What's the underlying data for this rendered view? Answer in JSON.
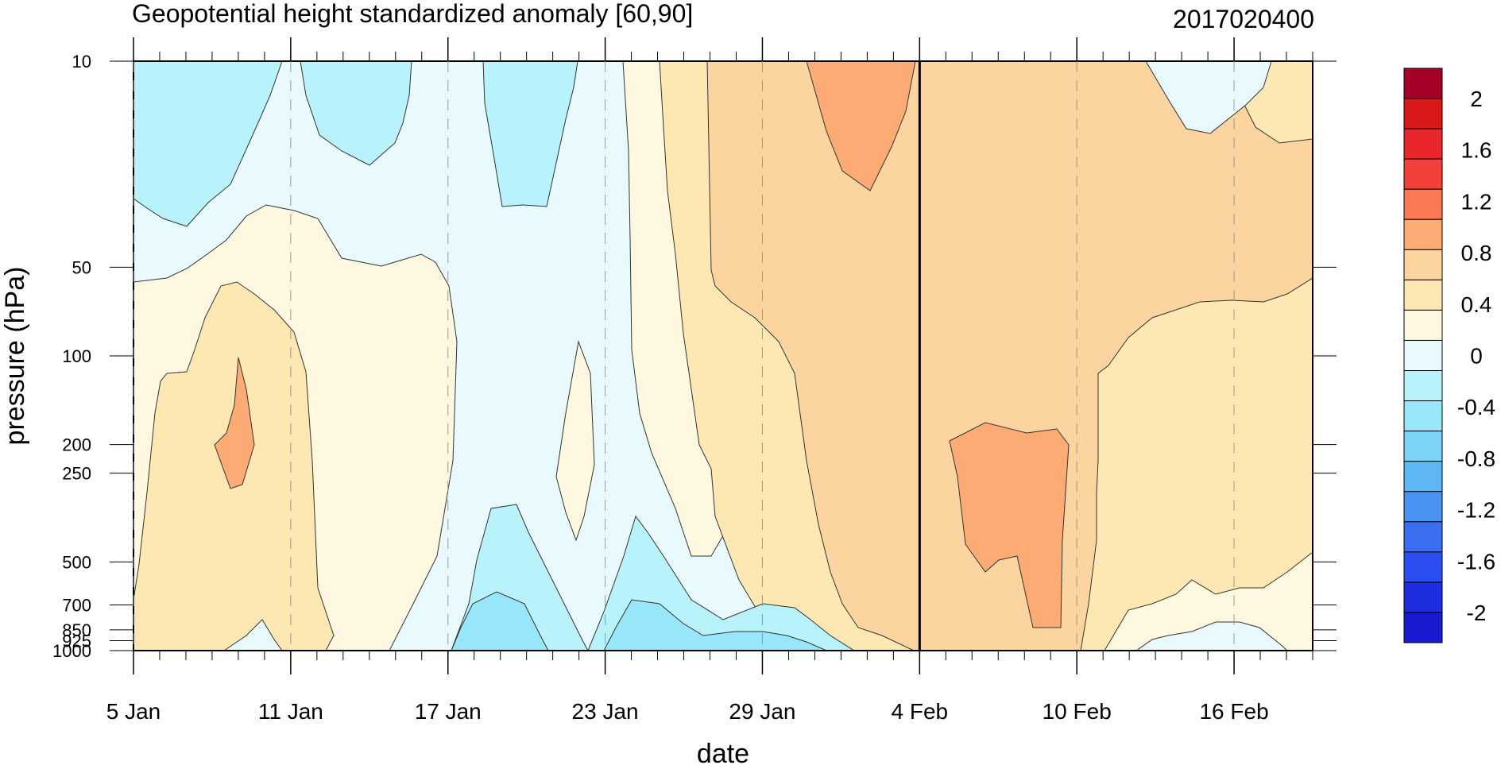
{
  "chart_data": {
    "type": "heatmap",
    "subtype": "filled-contour time-pressure section",
    "title": "Geopotential height standardized anomaly [60,90]",
    "date_stamp": "2017020400",
    "xlabel": "date",
    "ylabel": "pressure (hPa)",
    "y_scale": "log",
    "y_reversed": true,
    "ylim": [
      1000,
      10
    ],
    "xlim": [
      "2017-01-05",
      "2017-02-19"
    ],
    "x_ticks": [
      "5 Jan",
      "11 Jan",
      "17 Jan",
      "23 Jan",
      "29 Jan",
      "4 Feb",
      "10 Feb",
      "16 Feb"
    ],
    "y_ticks": [
      "10",
      "50",
      "100",
      "200",
      "250",
      "500",
      "700",
      "850",
      "925",
      "1000"
    ],
    "vertical_marker": "4 Feb",
    "colorbar": {
      "labels": [
        "2",
        "1.6",
        "1.2",
        "0.8",
        "0.4",
        "0",
        "-0.4",
        "-0.8",
        "-1.2",
        "-1.6",
        "-2"
      ],
      "colors": [
        "#a50026",
        "#d7191c",
        "#e8262b",
        "#f4403a",
        "#fb7a55",
        "#fcab74",
        "#fcd4a0",
        "#fde8b4",
        "#fef8e0",
        "#e8fafd",
        "#b8f2fb",
        "#98e6f9",
        "#7cd4f6",
        "#5fb7f3",
        "#4b93f0",
        "#3b6ef0",
        "#2c4ef0",
        "#1d2ee0",
        "#1a1bd0"
      ]
    },
    "grid": "vertical dashed lines at date ticks",
    "fields": [
      {
        "level": "upper stratosphere 10-50 hPa",
        "period": "5-23 Jan",
        "anomaly_range": [
          -0.8,
          0
        ]
      },
      {
        "level": "upper stratosphere 10-50 hPa",
        "period": "25 Jan-4 Feb",
        "anomaly_range": [
          0.4,
          1.2
        ]
      },
      {
        "level": "lower stratosphere 100-250 hPa",
        "period": "5-12 Jan",
        "anomaly_range": [
          0,
          0.8
        ]
      },
      {
        "level": "mid troposphere 250-500 hPa",
        "period": "5-9 Feb",
        "anomaly_range": [
          0.8,
          1.2
        ]
      },
      {
        "level": "lower troposphere 500-1000 hPa",
        "period": "17-31 Jan",
        "anomaly_range": [
          -0.8,
          -0.4
        ]
      },
      {
        "level": "lower troposphere 700-1000 hPa",
        "period": "13-19 Feb",
        "anomaly_range": [
          -0.4,
          0.4
        ]
      }
    ]
  }
}
